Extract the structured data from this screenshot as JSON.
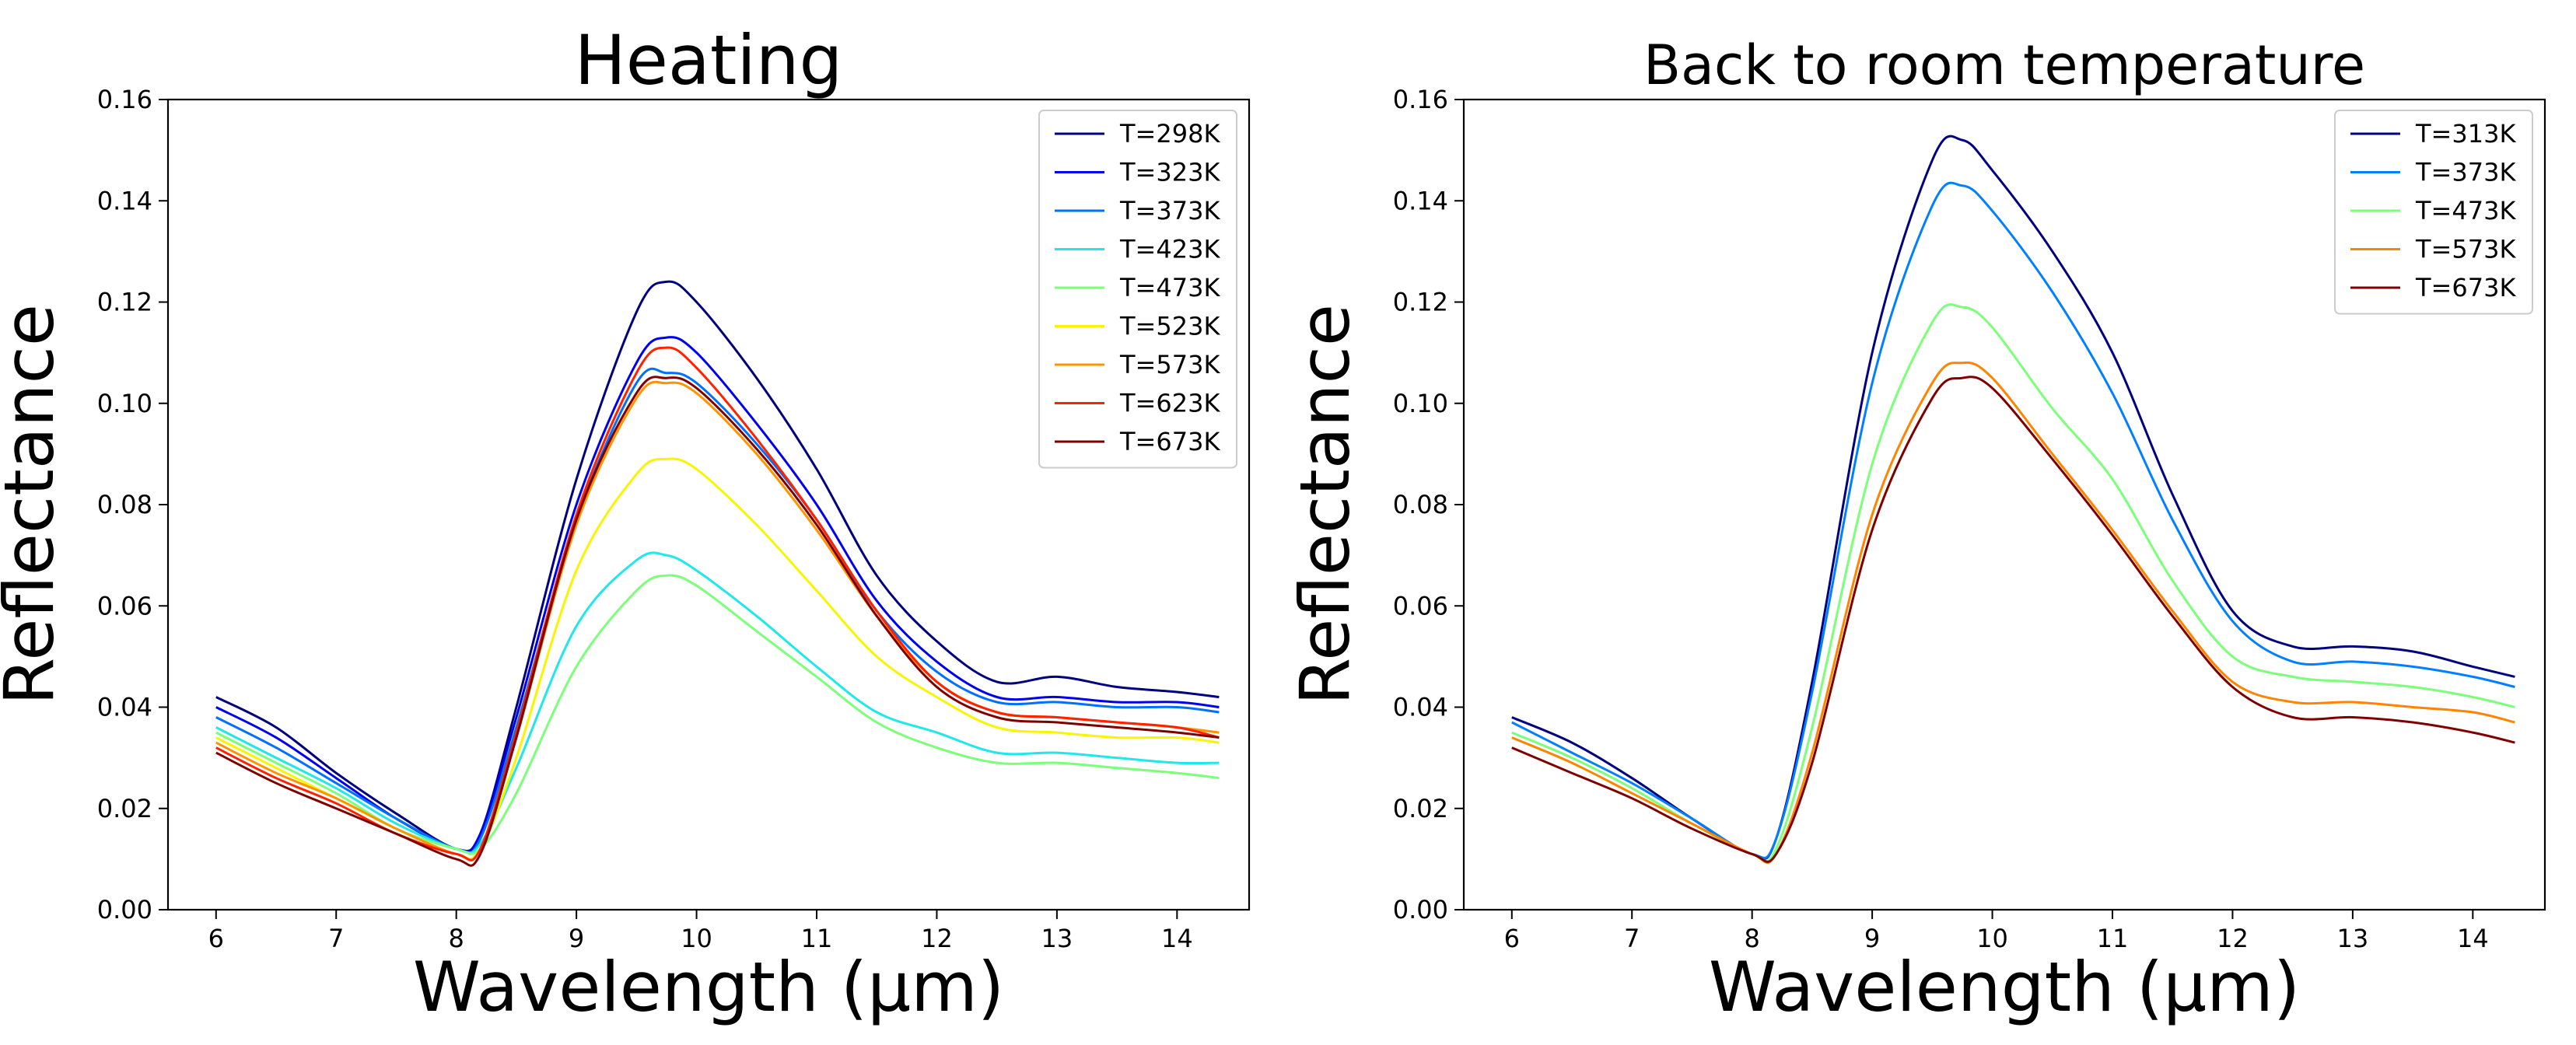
{
  "chart_data": [
    {
      "type": "line",
      "title": "Heating",
      "xlabel": "Wavelength (μm)",
      "ylabel": "Reflectance",
      "xlim": [
        5.6,
        14.6
      ],
      "ylim": [
        0,
        0.16
      ],
      "xticks": [
        6,
        7,
        8,
        9,
        10,
        11,
        12,
        13,
        14
      ],
      "xtick_labels": [
        "6",
        "7",
        "8",
        "9",
        "10",
        "11",
        "12",
        "13",
        "14"
      ],
      "yticks": [
        0,
        0.02,
        0.04,
        0.06,
        0.08,
        0.1,
        0.12,
        0.14,
        0.16
      ],
      "ytick_labels": [
        "0.00",
        "0.02",
        "0.04",
        "0.06",
        "0.08",
        "0.10",
        "0.12",
        "0.14",
        "0.16"
      ],
      "grid": false,
      "legend_position": "top-right",
      "x": [
        6.0,
        6.5,
        7.0,
        7.5,
        8.0,
        8.2,
        8.5,
        9.0,
        9.5,
        9.75,
        10.0,
        10.5,
        11.0,
        11.5,
        12.0,
        12.5,
        13.0,
        13.5,
        14.0,
        14.35
      ],
      "series": [
        {
          "name": "T=298K",
          "color": "#00007f",
          "values": [
            0.042,
            0.036,
            0.027,
            0.019,
            0.012,
            0.015,
            0.04,
            0.085,
            0.118,
            0.124,
            0.12,
            0.105,
            0.087,
            0.066,
            0.053,
            0.045,
            0.046,
            0.044,
            0.043,
            0.042
          ]
        },
        {
          "name": "T=323K",
          "color": "#0000f1",
          "values": [
            0.04,
            0.034,
            0.026,
            0.018,
            0.012,
            0.015,
            0.038,
            0.08,
            0.108,
            0.113,
            0.11,
            0.096,
            0.08,
            0.061,
            0.049,
            0.042,
            0.042,
            0.041,
            0.041,
            0.04
          ]
        },
        {
          "name": "T=373K",
          "color": "#0070ff",
          "values": [
            0.038,
            0.032,
            0.025,
            0.018,
            0.012,
            0.014,
            0.036,
            0.077,
            0.104,
            0.106,
            0.104,
            0.092,
            0.077,
            0.059,
            0.047,
            0.041,
            0.041,
            0.04,
            0.04,
            0.039
          ]
        },
        {
          "name": "T=423K",
          "color": "#1fe8e8",
          "values": [
            0.036,
            0.03,
            0.024,
            0.017,
            0.012,
            0.013,
            0.028,
            0.056,
            0.069,
            0.07,
            0.067,
            0.058,
            0.048,
            0.039,
            0.035,
            0.031,
            0.031,
            0.03,
            0.029,
            0.029
          ]
        },
        {
          "name": "T=473K",
          "color": "#7cff79",
          "values": [
            0.035,
            0.029,
            0.023,
            0.016,
            0.012,
            0.012,
            0.023,
            0.048,
            0.063,
            0.066,
            0.064,
            0.055,
            0.046,
            0.037,
            0.032,
            0.029,
            0.029,
            0.028,
            0.027,
            0.026
          ]
        },
        {
          "name": "T=523K",
          "color": "#f8f500",
          "values": [
            0.034,
            0.028,
            0.022,
            0.016,
            0.011,
            0.012,
            0.03,
            0.067,
            0.086,
            0.089,
            0.087,
            0.076,
            0.063,
            0.05,
            0.042,
            0.036,
            0.035,
            0.034,
            0.034,
            0.033
          ]
        },
        {
          "name": "T=573K",
          "color": "#ff9400",
          "values": [
            0.033,
            0.027,
            0.022,
            0.016,
            0.011,
            0.012,
            0.034,
            0.076,
            0.101,
            0.104,
            0.102,
            0.09,
            0.075,
            0.058,
            0.045,
            0.039,
            0.038,
            0.037,
            0.036,
            0.035
          ]
        },
        {
          "name": "T=623K",
          "color": "#ff2200",
          "values": [
            0.032,
            0.026,
            0.021,
            0.015,
            0.011,
            0.012,
            0.035,
            0.078,
            0.106,
            0.111,
            0.107,
            0.093,
            0.077,
            0.059,
            0.045,
            0.039,
            0.038,
            0.037,
            0.036,
            0.034
          ]
        },
        {
          "name": "T=673K",
          "color": "#7f0000",
          "values": [
            0.031,
            0.025,
            0.02,
            0.015,
            0.01,
            0.011,
            0.034,
            0.077,
            0.102,
            0.105,
            0.103,
            0.091,
            0.076,
            0.058,
            0.044,
            0.038,
            0.037,
            0.036,
            0.035,
            0.034
          ]
        }
      ]
    },
    {
      "type": "line",
      "title": "Back to room temperature",
      "xlabel": "Wavelength (μm)",
      "ylabel": "Reflectance",
      "xlim": [
        5.6,
        14.6
      ],
      "ylim": [
        0,
        0.16
      ],
      "xticks": [
        6,
        7,
        8,
        9,
        10,
        11,
        12,
        13,
        14
      ],
      "xtick_labels": [
        "6",
        "7",
        "8",
        "9",
        "10",
        "11",
        "12",
        "13",
        "14"
      ],
      "yticks": [
        0,
        0.02,
        0.04,
        0.06,
        0.08,
        0.1,
        0.12,
        0.14,
        0.16
      ],
      "ytick_labels": [
        "0.00",
        "0.02",
        "0.04",
        "0.06",
        "0.08",
        "0.10",
        "0.12",
        "0.14",
        "0.16"
      ],
      "grid": false,
      "legend_position": "top-right",
      "x": [
        6.0,
        6.5,
        7.0,
        7.5,
        8.0,
        8.2,
        8.5,
        9.0,
        9.5,
        9.75,
        10.0,
        10.5,
        11.0,
        11.5,
        12.0,
        12.5,
        13.0,
        13.5,
        14.0,
        14.35
      ],
      "series": [
        {
          "name": "T=313K",
          "color": "#00007f",
          "values": [
            0.038,
            0.033,
            0.026,
            0.018,
            0.011,
            0.014,
            0.045,
            0.11,
            0.148,
            0.152,
            0.146,
            0.13,
            0.11,
            0.082,
            0.059,
            0.052,
            0.052,
            0.051,
            0.048,
            0.046
          ]
        },
        {
          "name": "T=373K",
          "color": "#0080ff",
          "values": [
            0.037,
            0.031,
            0.025,
            0.018,
            0.011,
            0.014,
            0.043,
            0.104,
            0.139,
            0.143,
            0.138,
            0.122,
            0.102,
            0.077,
            0.057,
            0.049,
            0.049,
            0.048,
            0.046,
            0.044
          ]
        },
        {
          "name": "T=473K",
          "color": "#7cff79",
          "values": [
            0.035,
            0.03,
            0.024,
            0.017,
            0.011,
            0.012,
            0.036,
            0.088,
            0.116,
            0.119,
            0.115,
            0.099,
            0.085,
            0.065,
            0.05,
            0.046,
            0.045,
            0.044,
            0.042,
            0.04
          ]
        },
        {
          "name": "T=573K",
          "color": "#ff8400",
          "values": [
            0.034,
            0.029,
            0.023,
            0.017,
            0.011,
            0.011,
            0.031,
            0.078,
            0.104,
            0.108,
            0.105,
            0.09,
            0.075,
            0.059,
            0.045,
            0.041,
            0.041,
            0.04,
            0.039,
            0.037
          ]
        },
        {
          "name": "T=673K",
          "color": "#7f0000",
          "values": [
            0.032,
            0.027,
            0.022,
            0.016,
            0.011,
            0.011,
            0.029,
            0.075,
            0.101,
            0.105,
            0.103,
            0.089,
            0.074,
            0.058,
            0.044,
            0.038,
            0.038,
            0.037,
            0.035,
            0.033
          ]
        }
      ]
    }
  ]
}
